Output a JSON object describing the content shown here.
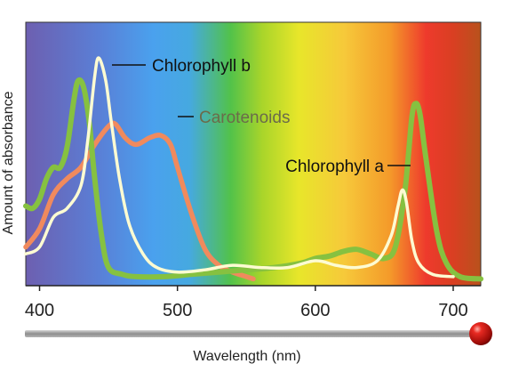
{
  "chart_data": {
    "type": "line",
    "title": "",
    "xlabel": "Wavelength (nm)",
    "ylabel": "Amount of absorbance",
    "xlim": [
      390,
      720
    ],
    "ylim": [
      0,
      1
    ],
    "x_ticks": [
      400,
      500,
      600,
      700
    ],
    "grid": false,
    "legend": "inline labels next to curves",
    "background": "visible-light spectrum gradient (violet to red)",
    "series": [
      {
        "name": "Chlorophyll b",
        "color": "#fdfbd2",
        "label_color": "#111111",
        "x": [
          390,
          400,
          410,
          420,
          430,
          435,
          440,
          443,
          448,
          452,
          458,
          465,
          475,
          485,
          500,
          520,
          540,
          560,
          580,
          600,
          615,
          630,
          645,
          655,
          660,
          663,
          666,
          670,
          675,
          685,
          700
        ],
        "y": [
          0.12,
          0.15,
          0.28,
          0.32,
          0.42,
          0.62,
          0.9,
          0.98,
          0.88,
          0.7,
          0.45,
          0.25,
          0.12,
          0.06,
          0.04,
          0.05,
          0.07,
          0.06,
          0.06,
          0.09,
          0.07,
          0.06,
          0.09,
          0.2,
          0.33,
          0.4,
          0.35,
          0.18,
          0.08,
          0.03,
          0.02
        ]
      },
      {
        "name": "Carotenoids",
        "color": "#f08a5d",
        "label_color": "#6b6b4a",
        "x": [
          390,
          400,
          410,
          420,
          430,
          440,
          450,
          455,
          462,
          470,
          480,
          488,
          495,
          500,
          510,
          520,
          530,
          540,
          550,
          555
        ],
        "y": [
          0.15,
          0.23,
          0.38,
          0.45,
          0.5,
          0.6,
          0.68,
          0.69,
          0.63,
          0.6,
          0.63,
          0.64,
          0.6,
          0.5,
          0.3,
          0.14,
          0.07,
          0.04,
          0.02,
          0.01
        ]
      },
      {
        "name": "Chlorophyll a",
        "color": "#86c140",
        "label_color": "#111111",
        "x": [
          390,
          395,
          400,
          405,
          410,
          415,
          420,
          425,
          428,
          432,
          436,
          440,
          445,
          450,
          460,
          470,
          490,
          510,
          530,
          550,
          570,
          590,
          600,
          610,
          620,
          630,
          640,
          650,
          658,
          665,
          670,
          673,
          676,
          680,
          688,
          695,
          705,
          720
        ],
        "y": [
          0.33,
          0.32,
          0.36,
          0.45,
          0.5,
          0.5,
          0.59,
          0.8,
          0.88,
          0.85,
          0.7,
          0.45,
          0.2,
          0.06,
          0.03,
          0.02,
          0.02,
          0.03,
          0.04,
          0.05,
          0.06,
          0.08,
          0.1,
          0.11,
          0.13,
          0.14,
          0.12,
          0.1,
          0.15,
          0.4,
          0.72,
          0.78,
          0.73,
          0.55,
          0.22,
          0.08,
          0.02,
          0.01
        ]
      }
    ]
  }
}
